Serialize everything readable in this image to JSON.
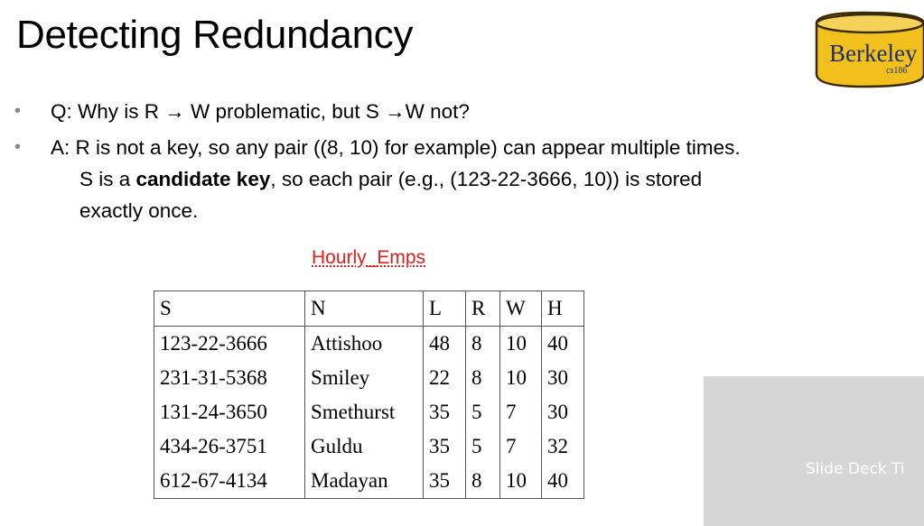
{
  "slide": {
    "title": "Detecting Redundancy",
    "logo": {
      "text": "Berkeley",
      "sub": "cs186",
      "fill_color": "#f2c01c",
      "text_color": "#1f2f6b"
    },
    "bullets": [
      {
        "text": "Q: Why is R → W problematic, but S →W not?"
      },
      {
        "line1": "A: R is not a key, so any pair ((8, 10) for example) can appear multiple times.",
        "line2_pre": "S is a ",
        "line2_bold": "candidate key",
        "line2_post": ", so each pair (e.g., (123-22-3666, 10)) is stored",
        "line3": "exactly once."
      }
    ],
    "table_caption": "Hourly_Emps",
    "table": {
      "headers": [
        "S",
        "N",
        "L",
        "R",
        "W",
        "H"
      ],
      "rows": [
        [
          "123-22-3666",
          "Attishoo",
          "48",
          "8",
          "10",
          "40"
        ],
        [
          "231-31-5368",
          "Smiley",
          "22",
          "8",
          "10",
          "30"
        ],
        [
          "131-24-3650",
          "Smethurst",
          "35",
          "5",
          "7",
          "30"
        ],
        [
          "434-26-3751",
          "Guldu",
          "35",
          "5",
          "7",
          "32"
        ],
        [
          "612-67-4134",
          "Madayan",
          "35",
          "8",
          "10",
          "40"
        ]
      ]
    },
    "placeholder_label": "Slide Deck Ti"
  }
}
